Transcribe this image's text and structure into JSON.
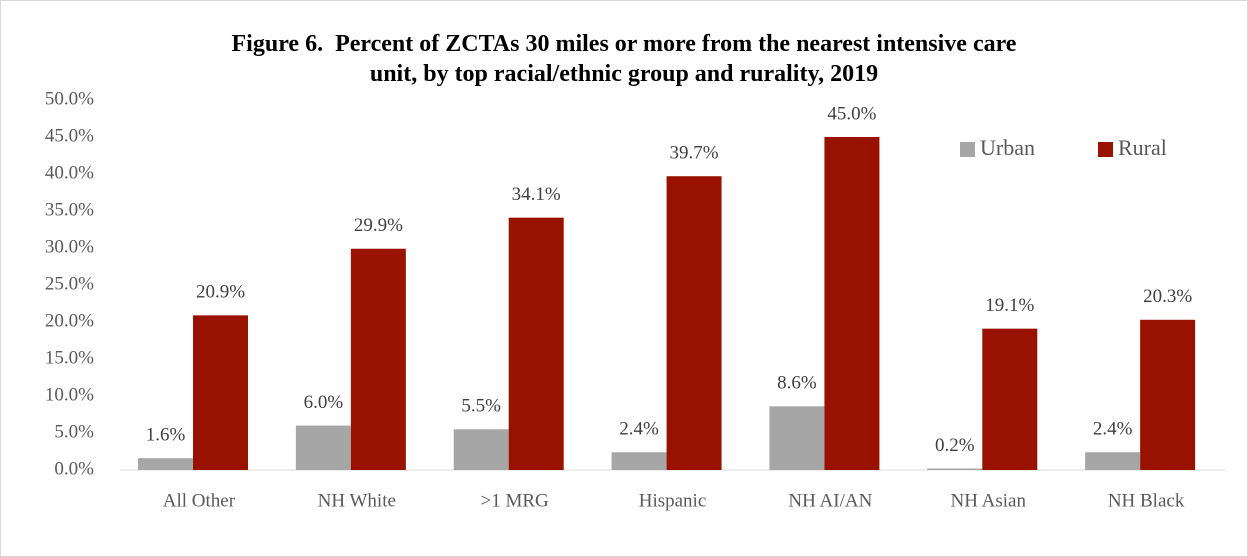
{
  "chart_data": {
    "type": "bar",
    "title": "Figure 6.  Percent of ZCTAs 30 miles or more from the nearest intensive care unit, by top racial/ethnic group and rurality, 2019",
    "categories": [
      "All Other",
      "NH White",
      ">1 MRG",
      "Hispanic",
      "NH AI/AN",
      "NH Asian",
      "NH Black"
    ],
    "series": [
      {
        "name": "Urban",
        "color": "#a6a6a6",
        "values": [
          1.6,
          6.0,
          5.5,
          2.4,
          8.6,
          0.2,
          2.4
        ],
        "value_labels": [
          "1.6%",
          "6.0%",
          "5.5%",
          "2.4%",
          "8.6%",
          "0.2%",
          "2.4%"
        ]
      },
      {
        "name": "Rural",
        "color": "#991200",
        "values": [
          20.9,
          29.9,
          34.1,
          39.7,
          45.0,
          19.1,
          20.3
        ],
        "value_labels": [
          "20.9%",
          "29.9%",
          "34.1%",
          "39.7%",
          "45.0%",
          "19.1%",
          "20.3%"
        ]
      }
    ],
    "ylim": [
      0,
      50
    ],
    "yticks": [
      {
        "value": 0,
        "label": "0.0%"
      },
      {
        "value": 5,
        "label": "5.0%"
      },
      {
        "value": 10,
        "label": "10.0%"
      },
      {
        "value": 15,
        "label": "15.0%"
      },
      {
        "value": 20,
        "label": "20.0%"
      },
      {
        "value": 25,
        "label": "25.0%"
      },
      {
        "value": 30,
        "label": "30.0%"
      },
      {
        "value": 35,
        "label": "35.0%"
      },
      {
        "value": 40,
        "label": "40.0%"
      },
      {
        "value": 45,
        "label": "45.0%"
      },
      {
        "value": 50,
        "label": "50.0%"
      }
    ],
    "grid": false,
    "legend": "top-right"
  }
}
